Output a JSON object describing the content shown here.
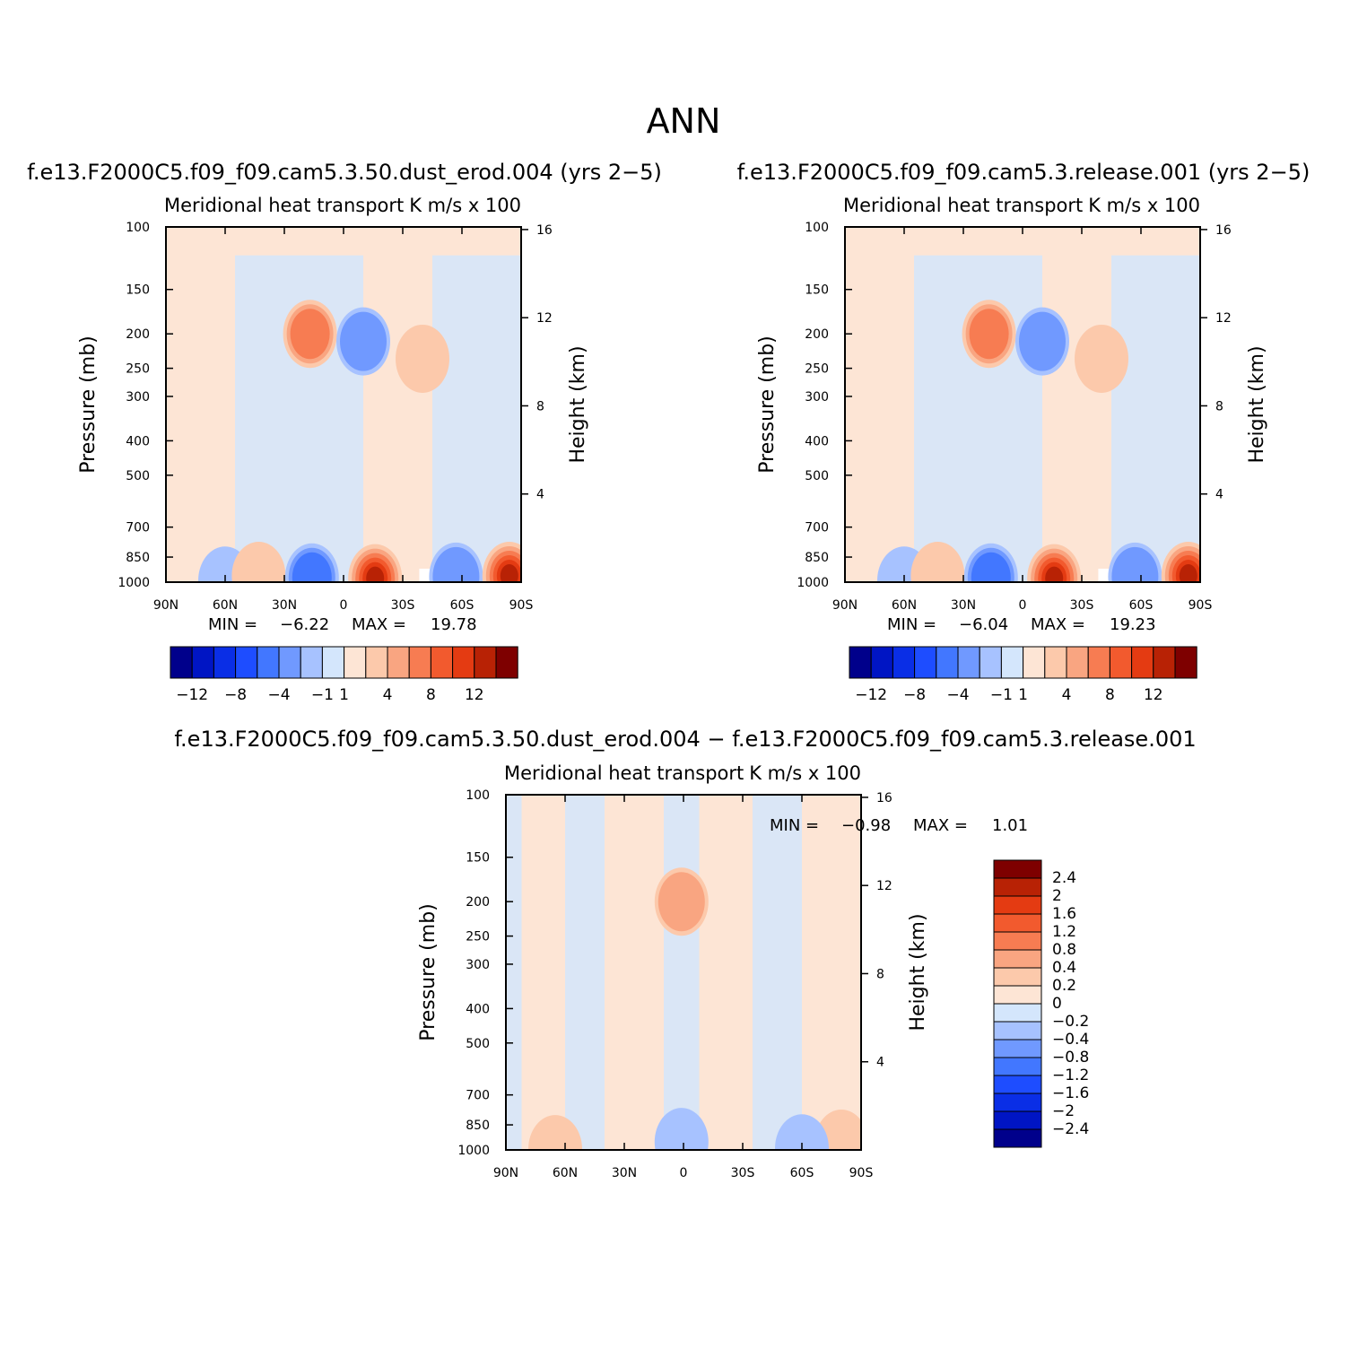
{
  "figure": {
    "season_title": "ANN"
  },
  "colors": {
    "main_scale": [
      "#00008b",
      "#0015c4",
      "#0a2ee6",
      "#1e4dff",
      "#4277ff",
      "#7099ff",
      "#a7c2ff",
      "#d4e6fc",
      "#fde5d5",
      "#fcc9ab",
      "#f9a581",
      "#f77c52",
      "#f25a2e",
      "#e43b12",
      "#b82205",
      "#7e0000"
    ],
    "diff_scale": [
      "#00008b",
      "#0015c4",
      "#0a2ee6",
      "#1e4dff",
      "#4277ff",
      "#7099ff",
      "#a7c2ff",
      "#d4e6fc",
      "#fde5d5",
      "#fcc9ab",
      "#f9a581",
      "#f77c52",
      "#f25a2e",
      "#e43b12",
      "#b82205",
      "#7e0000"
    ]
  },
  "chart_data": [
    {
      "type": "heatmap",
      "title": "f.e13.F2000C5.f09_f09.cam5.3.50.dust_erod.004 (yrs 2−5)",
      "subtitle_left": "Meridional heat transport",
      "subtitle_right": "K m/s x 100",
      "ylabel": "Pressure (mb)",
      "ylabel_right": "Height (km)",
      "x_ticks": [
        "90N",
        "60N",
        "30N",
        "0",
        "30S",
        "60S",
        "90S"
      ],
      "y_ticks": [
        "100",
        "150",
        "200",
        "250",
        "300",
        "400",
        "500",
        "700",
        "850",
        "1000"
      ],
      "y_ticks_right": [
        "16",
        "12",
        "8",
        "4"
      ],
      "min_label": "MIN =",
      "min_value": "−6.22",
      "max_label": "MAX =",
      "max_value": "19.78",
      "legend_labels": [
        "−12",
        "−8",
        "−4",
        "−1",
        "1",
        "4",
        "8",
        "12"
      ],
      "features": [
        {
          "lat": -52,
          "p": 1000,
          "w": 60,
          "h": 15,
          "value": 0,
          "note": "masked"
        },
        {
          "lat": 60,
          "p": 990,
          "value": -1.5
        },
        {
          "lat": 43,
          "p": 960,
          "value": 3.5
        },
        {
          "lat": 16,
          "p": 970,
          "value": -6
        },
        {
          "lat": -16,
          "p": 975,
          "value": 12
        },
        {
          "lat": -57,
          "p": 965,
          "value": -4
        },
        {
          "lat": -84,
          "p": 960,
          "value": 14
        },
        {
          "lat": 17,
          "p": 200,
          "value": 6
        },
        {
          "lat": -10,
          "p": 210,
          "value": -5
        },
        {
          "lat": -40,
          "p": 235,
          "value": 3
        }
      ]
    },
    {
      "type": "heatmap",
      "title": "f.e13.F2000C5.f09_f09.cam5.3.release.001 (yrs 2−5)",
      "subtitle_left": "Meridional heat transport",
      "subtitle_right": "K m/s x 100",
      "ylabel": "Pressure (mb)",
      "ylabel_right": "Height (km)",
      "x_ticks": [
        "90N",
        "60N",
        "30N",
        "0",
        "30S",
        "60S",
        "90S"
      ],
      "y_ticks": [
        "100",
        "150",
        "200",
        "250",
        "300",
        "400",
        "500",
        "700",
        "850",
        "1000"
      ],
      "y_ticks_right": [
        "16",
        "12",
        "8",
        "4"
      ],
      "min_label": "MIN =",
      "min_value": "−6.04",
      "max_label": "MAX =",
      "max_value": "19.23",
      "legend_labels": [
        "−12",
        "−8",
        "−4",
        "−1",
        "1",
        "4",
        "8",
        "12"
      ],
      "features": [
        {
          "lat": -52,
          "p": 1000,
          "w": 60,
          "h": 15,
          "value": 0,
          "note": "masked"
        },
        {
          "lat": 60,
          "p": 990,
          "value": -1.5
        },
        {
          "lat": 43,
          "p": 960,
          "value": 3.5
        },
        {
          "lat": 16,
          "p": 970,
          "value": -6
        },
        {
          "lat": -16,
          "p": 975,
          "value": 12
        },
        {
          "lat": -57,
          "p": 965,
          "value": -4
        },
        {
          "lat": -84,
          "p": 960,
          "value": 14
        },
        {
          "lat": 17,
          "p": 200,
          "value": 6
        },
        {
          "lat": -10,
          "p": 210,
          "value": -5
        },
        {
          "lat": -40,
          "p": 235,
          "value": 3
        }
      ]
    },
    {
      "type": "heatmap",
      "title": "f.e13.F2000C5.f09_f09.cam5.3.50.dust_erod.004 − f.e13.F2000C5.f09_f09.cam5.3.release.001",
      "subtitle_left": "Meridional heat transport",
      "subtitle_right": "K m/s x 100",
      "ylabel": "Pressure (mb)",
      "ylabel_right": "Height (km)",
      "x_ticks": [
        "90N",
        "60N",
        "30N",
        "0",
        "30S",
        "60S",
        "90S"
      ],
      "y_ticks": [
        "100",
        "150",
        "200",
        "250",
        "300",
        "400",
        "500",
        "700",
        "850",
        "1000"
      ],
      "y_ticks_right": [
        "16",
        "12",
        "8",
        "4"
      ],
      "min_label": "MIN =",
      "min_value": "−0.98",
      "max_label": "MAX =",
      "max_value": "1.01",
      "legend_labels": [
        "2.4",
        "2",
        "1.6",
        "1.2",
        "0.8",
        "0.4",
        "0.2",
        "0",
        "−0.2",
        "−0.4",
        "−0.8",
        "−1.2",
        "−1.6",
        "−2",
        "−2.4"
      ],
      "features": [
        {
          "lat": 1,
          "p": 200,
          "value": 0.6
        },
        {
          "lat": 1,
          "p": 950,
          "value": -0.3
        },
        {
          "lat": 65,
          "p": 995,
          "value": 0.25
        },
        {
          "lat": -80,
          "p": 960,
          "value": 0.3
        },
        {
          "lat": -60,
          "p": 990,
          "value": -0.25
        }
      ]
    }
  ]
}
